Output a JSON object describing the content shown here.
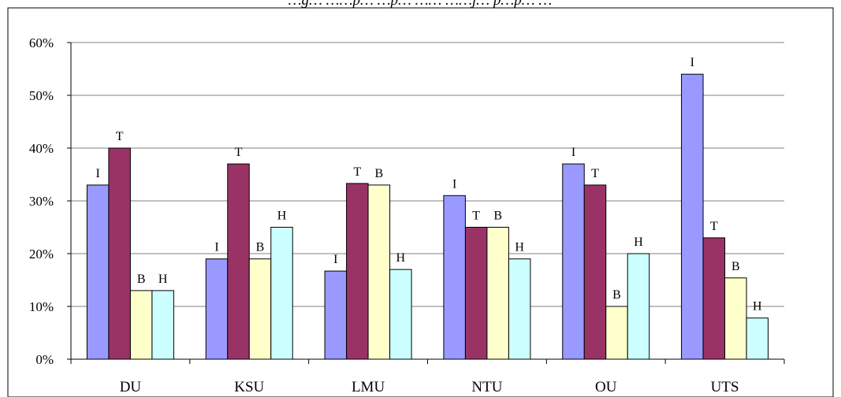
{
  "chart_data": {
    "type": "bar",
    "title": "…g… ……p… …p… …… ……j… p…p… …",
    "categories": [
      "DU",
      "KSU",
      "LMU",
      "NTU",
      "OU",
      "UTS"
    ],
    "series": [
      {
        "label": "I",
        "color": "#9999ff",
        "values": [
          33,
          19,
          16.7,
          31,
          37,
          54
        ]
      },
      {
        "label": "T",
        "color": "#993366",
        "values": [
          40,
          37,
          33.3,
          25,
          33,
          23
        ]
      },
      {
        "label": "B",
        "color": "#ffffcc",
        "values": [
          13,
          19,
          33,
          25,
          10,
          15.4
        ]
      },
      {
        "label": "H",
        "color": "#ccffff",
        "values": [
          13,
          25,
          17,
          19,
          20,
          7.8
        ]
      }
    ],
    "yticks": [
      "0%",
      "10%",
      "20%",
      "30%",
      "40%",
      "50%",
      "60%"
    ],
    "ylim": [
      0,
      60
    ],
    "grid": true
  }
}
